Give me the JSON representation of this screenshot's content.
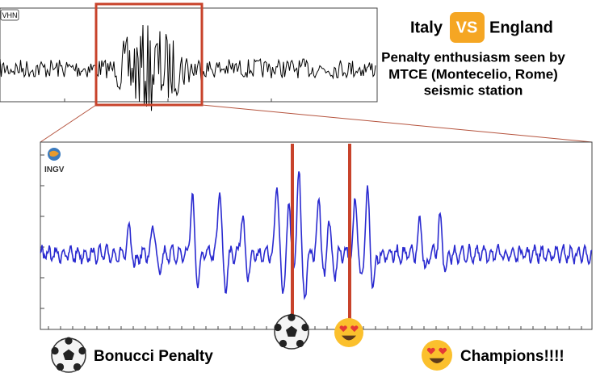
{
  "top_panel": {
    "channel": "VHN"
  },
  "header": {
    "team_1": "Italy",
    "versus": "VS",
    "team_2": "England",
    "subtitle_lines": [
      "Penalty enthusiasm seen by",
      "MTCE (Montecelio, Rome)",
      "seismic station"
    ]
  },
  "zoom_panel": {
    "logo": "INGV"
  },
  "legend": {
    "penalty": "Bonucci Penalty",
    "champions": "Champions!!!!"
  }
}
